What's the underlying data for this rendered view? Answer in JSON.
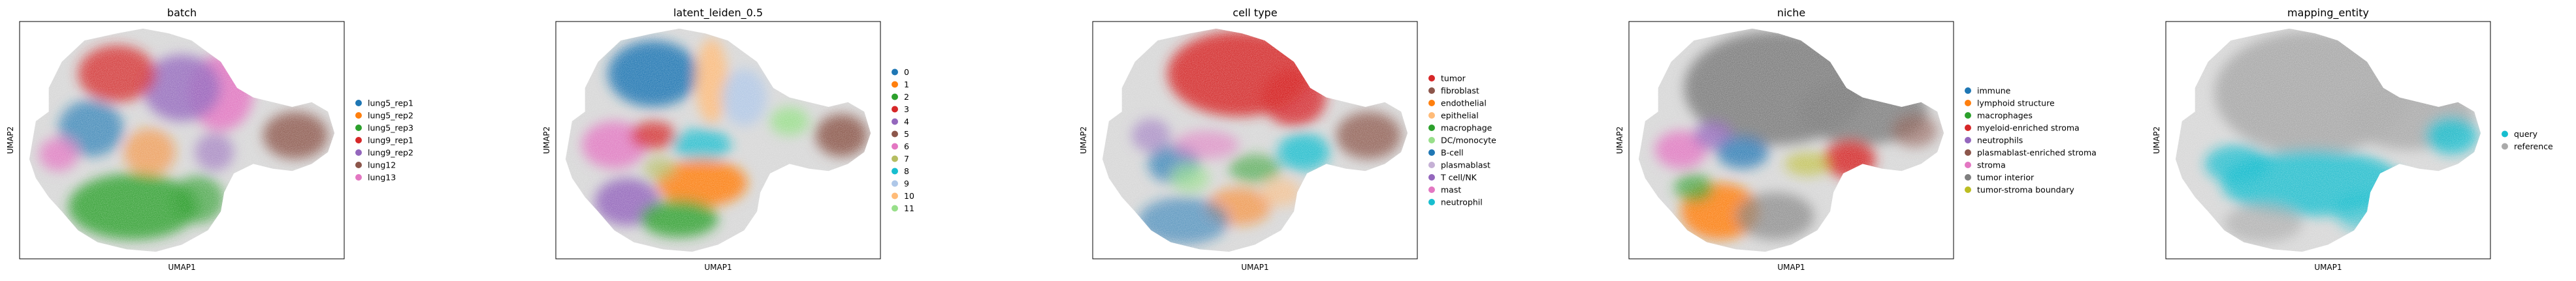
{
  "chart_data": [
    {
      "type": "scatter",
      "title": "batch",
      "xlabel": "UMAP1",
      "ylabel": "UMAP2",
      "grid": false,
      "legend_placement": "right",
      "series": [
        {
          "name": "lung5_rep1",
          "color": "#1f77b4"
        },
        {
          "name": "lung5_rep2",
          "color": "#ff7f0e"
        },
        {
          "name": "lung5_rep3",
          "color": "#2ca02c"
        },
        {
          "name": "lung9_rep1",
          "color": "#d62728"
        },
        {
          "name": "lung9_rep2",
          "color": "#9467bd"
        },
        {
          "name": "lung12",
          "color": "#8c564b"
        },
        {
          "name": "lung13",
          "color": "#e377c2"
        }
      ]
    },
    {
      "type": "scatter",
      "title": "latent_leiden_0.5",
      "xlabel": "UMAP1",
      "ylabel": "UMAP2",
      "grid": false,
      "legend_placement": "right",
      "series": [
        {
          "name": "0",
          "color": "#1f77b4"
        },
        {
          "name": "1",
          "color": "#ff7f0e"
        },
        {
          "name": "2",
          "color": "#2ca02c"
        },
        {
          "name": "3",
          "color": "#d62728"
        },
        {
          "name": "4",
          "color": "#9467bd"
        },
        {
          "name": "5",
          "color": "#8c564b"
        },
        {
          "name": "6",
          "color": "#e377c2"
        },
        {
          "name": "7",
          "color": "#b5bd61"
        },
        {
          "name": "8",
          "color": "#17becf"
        },
        {
          "name": "9",
          "color": "#aec7e8"
        },
        {
          "name": "10",
          "color": "#ffbb78"
        },
        {
          "name": "11",
          "color": "#98df8a"
        }
      ]
    },
    {
      "type": "scatter",
      "title": "cell type",
      "xlabel": "UMAP1",
      "ylabel": "UMAP2",
      "grid": false,
      "legend_placement": "right",
      "series": [
        {
          "name": "tumor",
          "color": "#d62728"
        },
        {
          "name": "fibroblast",
          "color": "#8c564b"
        },
        {
          "name": "endothelial",
          "color": "#ff7f0e"
        },
        {
          "name": "epithelial",
          "color": "#ffbb78"
        },
        {
          "name": "macrophage",
          "color": "#2ca02c"
        },
        {
          "name": "DC/monocyte",
          "color": "#98df8a"
        },
        {
          "name": "B-cell",
          "color": "#1f77b4"
        },
        {
          "name": "plasmablast",
          "color": "#c5b0d5"
        },
        {
          "name": "T cell/NK",
          "color": "#9467bd"
        },
        {
          "name": "mast",
          "color": "#e377c2"
        },
        {
          "name": "neutrophil",
          "color": "#17becf"
        }
      ]
    },
    {
      "type": "scatter",
      "title": "niche",
      "xlabel": "UMAP1",
      "ylabel": "UMAP2",
      "grid": false,
      "legend_placement": "right",
      "series": [
        {
          "name": "immune",
          "color": "#1f77b4"
        },
        {
          "name": "lymphoid structure",
          "color": "#ff7f0e"
        },
        {
          "name": "macrophages",
          "color": "#2ca02c"
        },
        {
          "name": "myeloid-enriched stroma",
          "color": "#d62728"
        },
        {
          "name": "neutrophils",
          "color": "#9467bd"
        },
        {
          "name": "plasmablast-enriched stroma",
          "color": "#8c564b"
        },
        {
          "name": "stroma",
          "color": "#e377c2"
        },
        {
          "name": "tumor interior",
          "color": "#7f7f7f"
        },
        {
          "name": "tumor-stroma boundary",
          "color": "#bcbd22"
        }
      ]
    },
    {
      "type": "scatter",
      "title": "mapping_entity",
      "xlabel": "UMAP1",
      "ylabel": "UMAP2",
      "grid": false,
      "legend_placement": "right",
      "series": [
        {
          "name": "query",
          "color": "#17becf"
        },
        {
          "name": "reference",
          "color": "#aaaaaa"
        }
      ]
    }
  ]
}
